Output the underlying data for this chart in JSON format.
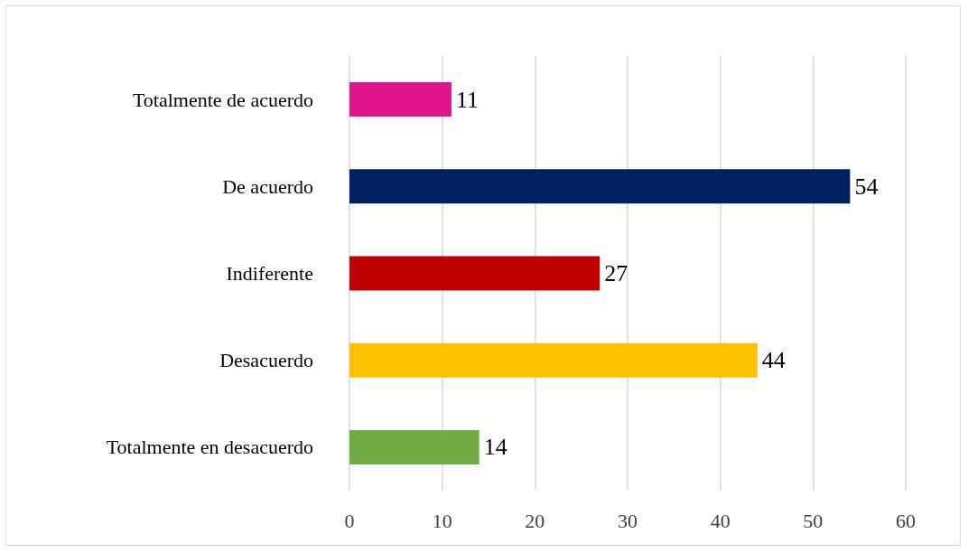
{
  "chart_data": {
    "type": "bar",
    "orientation": "horizontal",
    "categories": [
      "Totalmente de acuerdo",
      "De acuerdo",
      "Indiferente",
      "Desacuerdo",
      "Totalmente en desacuerdo"
    ],
    "values": [
      11,
      54,
      27,
      44,
      14
    ],
    "colors": [
      "#e0138f",
      "#002060",
      "#c00000",
      "#ffc000",
      "#70ad47"
    ],
    "xlim": [
      0,
      60
    ],
    "xticks": [
      0,
      10,
      20,
      30,
      40,
      50,
      60
    ],
    "grid": "x",
    "data_labels": true
  }
}
